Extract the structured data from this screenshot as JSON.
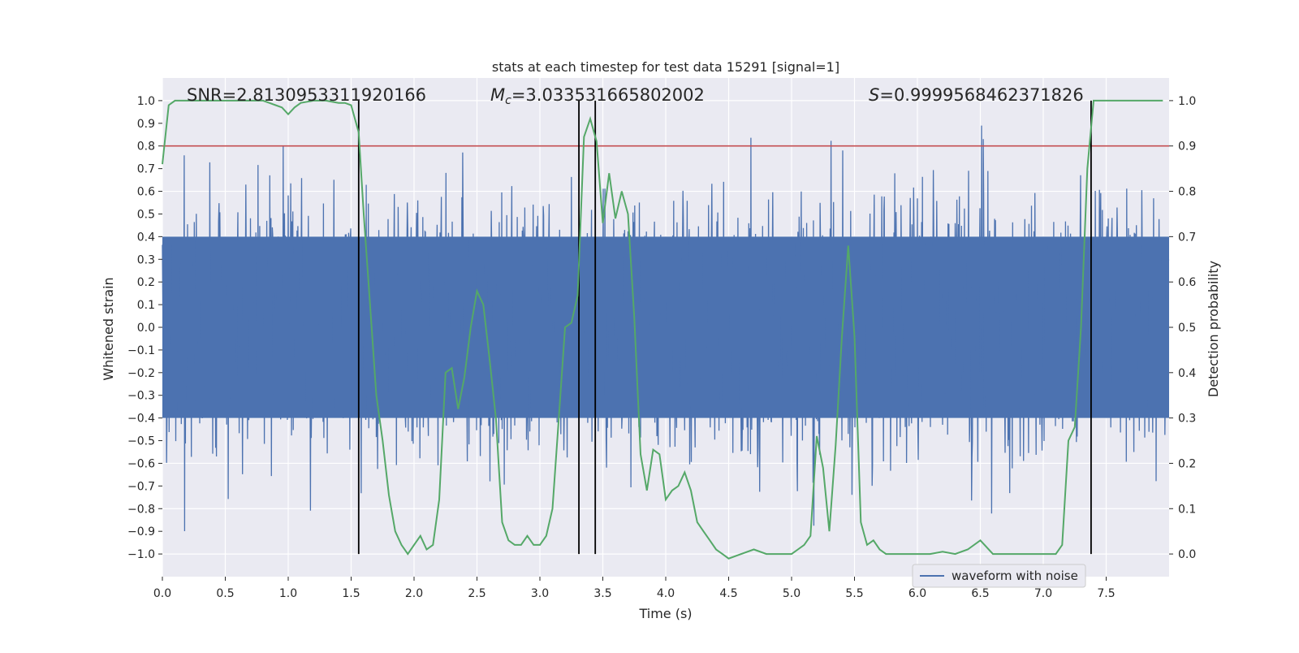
{
  "chart_data": {
    "type": "line",
    "title": "stats at each timestep for test data 15291 [signal=1]",
    "xlabel": "Time (s)",
    "ylabel": "Whitened strain",
    "ylabel_right": "Detection probability",
    "xlim": [
      0.0,
      8.0
    ],
    "ylim": [
      -1.1,
      1.1
    ],
    "ylim_right": [
      -0.05,
      1.05
    ],
    "x_ticks": [
      "0.0",
      "0.5",
      "1.0",
      "1.5",
      "2.0",
      "2.5",
      "3.0",
      "3.5",
      "4.0",
      "4.5",
      "5.0",
      "5.5",
      "6.0",
      "6.5",
      "7.0",
      "7.5"
    ],
    "x_tick_values": [
      0.0,
      0.5,
      1.0,
      1.5,
      2.0,
      2.5,
      3.0,
      3.5,
      4.0,
      4.5,
      5.0,
      5.5,
      6.0,
      6.5,
      7.0,
      7.5
    ],
    "y_ticks": [
      "1.0",
      "0.9",
      "0.8",
      "0.7",
      "0.6",
      "0.5",
      "0.4",
      "0.3",
      "0.2",
      "0.1",
      "0.0",
      "−0.1",
      "−0.2",
      "−0.3",
      "−0.4",
      "−0.5",
      "−0.6",
      "−0.7",
      "−0.8",
      "−0.9",
      "−1.0"
    ],
    "y_tick_values": [
      1.0,
      0.9,
      0.8,
      0.7,
      0.6,
      0.5,
      0.4,
      0.3,
      0.2,
      0.1,
      0.0,
      -0.1,
      -0.2,
      -0.3,
      -0.4,
      -0.5,
      -0.6,
      -0.7,
      -0.8,
      -0.9,
      -1.0
    ],
    "y_right_ticks": [
      "1.0",
      "0.9",
      "0.8",
      "0.7",
      "0.6",
      "0.5",
      "0.4",
      "0.3",
      "0.2",
      "0.1",
      "0.0"
    ],
    "y_right_tick_values": [
      1.0,
      0.9,
      0.8,
      0.7,
      0.6,
      0.5,
      0.4,
      0.3,
      0.2,
      0.1,
      0.0
    ],
    "annotations": {
      "snr": "SNR=2.8130953311920166",
      "mc_symbol": "M",
      "mc_sub": "c",
      "mc_value": "=3.033531665802002",
      "s_symbol": "S",
      "s_value": "=0.9999568462371826"
    },
    "threshold": 0.9,
    "vertical_lines": [
      1.56,
      3.31,
      3.44,
      7.38
    ],
    "legend": {
      "label": "waveform with noise",
      "position": "lower-right"
    },
    "series": [
      {
        "name": "waveform with noise",
        "axis": "left",
        "style": "dense-noise",
        "duration": 8.0,
        "noise_band": [
          -0.4,
          0.4
        ],
        "peak_range": [
          -0.99,
          1.0
        ]
      },
      {
        "name": "Detection probability",
        "axis": "right",
        "x": [
          0.0,
          0.05,
          0.1,
          0.2,
          0.3,
          0.4,
          0.5,
          0.6,
          0.7,
          0.8,
          0.9,
          0.95,
          1.0,
          1.05,
          1.1,
          1.2,
          1.3,
          1.4,
          1.45,
          1.5,
          1.56,
          1.6,
          1.65,
          1.7,
          1.75,
          1.8,
          1.85,
          1.9,
          1.95,
          2.0,
          2.05,
          2.1,
          2.15,
          2.2,
          2.25,
          2.3,
          2.35,
          2.4,
          2.45,
          2.5,
          2.55,
          2.6,
          2.65,
          2.7,
          2.75,
          2.8,
          2.85,
          2.9,
          2.95,
          3.0,
          3.05,
          3.1,
          3.15,
          3.2,
          3.25,
          3.3,
          3.35,
          3.4,
          3.45,
          3.5,
          3.55,
          3.6,
          3.65,
          3.7,
          3.75,
          3.8,
          3.85,
          3.9,
          3.95,
          4.0,
          4.05,
          4.1,
          4.15,
          4.2,
          4.25,
          4.3,
          4.35,
          4.4,
          4.45,
          4.5,
          4.6,
          4.7,
          4.8,
          4.9,
          5.0,
          5.05,
          5.1,
          5.15,
          5.2,
          5.25,
          5.3,
          5.35,
          5.4,
          5.45,
          5.5,
          5.55,
          5.6,
          5.65,
          5.7,
          5.75,
          5.8,
          5.9,
          6.0,
          6.1,
          6.2,
          6.3,
          6.4,
          6.5,
          6.6,
          6.7,
          6.8,
          6.9,
          7.0,
          7.1,
          7.15,
          7.2,
          7.25,
          7.3,
          7.35,
          7.4,
          7.45,
          7.5,
          7.6,
          7.7,
          7.8,
          7.95
        ],
        "y": [
          0.86,
          0.99,
          1.0,
          1.0,
          1.0,
          1.0,
          1.0,
          1.0,
          1.0,
          1.0,
          0.99,
          0.985,
          0.97,
          0.985,
          0.995,
          1.0,
          1.0,
          0.995,
          0.995,
          0.99,
          0.93,
          0.75,
          0.55,
          0.35,
          0.25,
          0.13,
          0.05,
          0.02,
          0.0,
          0.02,
          0.04,
          0.01,
          0.02,
          0.12,
          0.4,
          0.41,
          0.32,
          0.39,
          0.5,
          0.58,
          0.55,
          0.43,
          0.3,
          0.07,
          0.03,
          0.02,
          0.02,
          0.04,
          0.02,
          0.02,
          0.04,
          0.1,
          0.3,
          0.5,
          0.51,
          0.57,
          0.92,
          0.96,
          0.91,
          0.73,
          0.84,
          0.74,
          0.8,
          0.75,
          0.52,
          0.22,
          0.14,
          0.23,
          0.22,
          0.12,
          0.14,
          0.15,
          0.18,
          0.14,
          0.07,
          0.05,
          0.03,
          0.01,
          0.0,
          -0.01,
          0.0,
          0.01,
          0.0,
          0.0,
          0.0,
          0.01,
          0.02,
          0.04,
          0.26,
          0.19,
          0.05,
          0.24,
          0.48,
          0.68,
          0.48,
          0.07,
          0.02,
          0.03,
          0.01,
          0.0,
          0.0,
          0.0,
          0.0,
          0.0,
          0.005,
          0.0,
          0.01,
          0.03,
          0.0,
          0.0,
          0.0,
          0.0,
          0.0,
          0.0,
          0.02,
          0.25,
          0.28,
          0.5,
          0.85,
          1.0,
          1.0,
          1.0,
          1.0,
          1.0,
          1.0,
          1.0
        ]
      }
    ]
  }
}
